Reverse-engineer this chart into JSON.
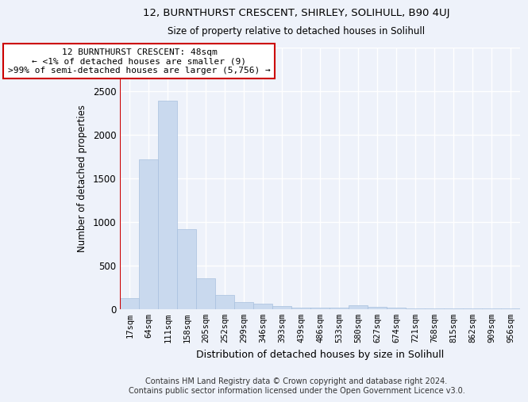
{
  "title": "12, BURNTHURST CRESCENT, SHIRLEY, SOLIHULL, B90 4UJ",
  "subtitle": "Size of property relative to detached houses in Solihull",
  "xlabel": "Distribution of detached houses by size in Solihull",
  "ylabel": "Number of detached properties",
  "bar_color": "#c9d9ee",
  "bar_edge_color": "#a8c0de",
  "background_color": "#eef2fa",
  "grid_color": "#ffffff",
  "categories": [
    "17sqm",
    "64sqm",
    "111sqm",
    "158sqm",
    "205sqm",
    "252sqm",
    "299sqm",
    "346sqm",
    "393sqm",
    "439sqm",
    "486sqm",
    "533sqm",
    "580sqm",
    "627sqm",
    "674sqm",
    "721sqm",
    "768sqm",
    "815sqm",
    "862sqm",
    "909sqm",
    "956sqm"
  ],
  "values": [
    120,
    1710,
    2390,
    910,
    350,
    155,
    80,
    55,
    30,
    15,
    10,
    10,
    40,
    25,
    10,
    8,
    8,
    8,
    8,
    8,
    8
  ],
  "ylim": [
    0,
    3000
  ],
  "yticks": [
    0,
    500,
    1000,
    1500,
    2000,
    2500,
    3000
  ],
  "annotation_text": "12 BURNTHURST CRESCENT: 48sqm\n← <1% of detached houses are smaller (9)\n>99% of semi-detached houses are larger (5,756) →",
  "annotation_box_color": "#ffffff",
  "annotation_box_edge_color": "#cc0000",
  "footer": "Contains HM Land Registry data © Crown copyright and database right 2024.\nContains public sector information licensed under the Open Government Licence v3.0.",
  "vline_color": "#cc0000"
}
